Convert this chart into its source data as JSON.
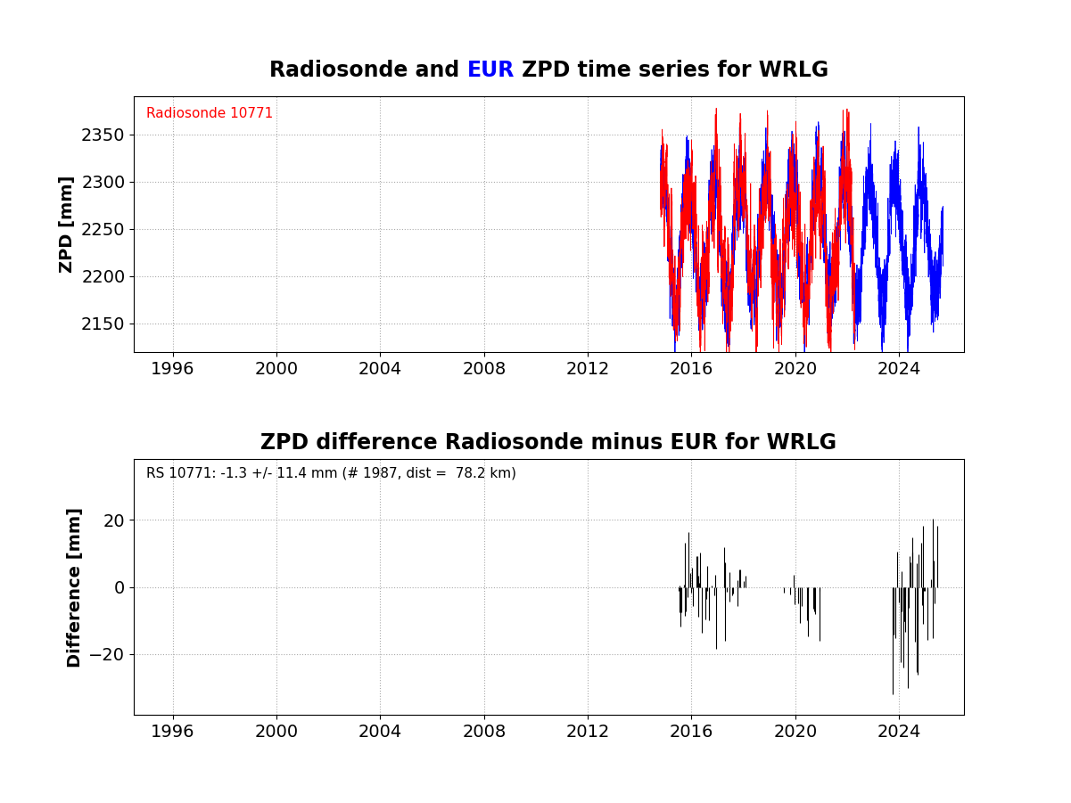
{
  "title1_parts": [
    {
      "text": "Radiosonde and ",
      "color": "black"
    },
    {
      "text": "EUR",
      "color": "blue"
    },
    {
      "text": " ZPD time series for WRLG",
      "color": "black"
    }
  ],
  "title2": "ZPD difference Radiosonde minus EUR for WRLG",
  "ylabel1": "ZPD [mm]",
  "ylabel2": "Difference [mm]",
  "xlim": [
    1994.5,
    2026.5
  ],
  "xticks": [
    1996,
    2000,
    2004,
    2008,
    2012,
    2016,
    2020,
    2024
  ],
  "ylim1": [
    2120,
    2390
  ],
  "yticks1": [
    2150,
    2200,
    2250,
    2300,
    2350
  ],
  "ylim2": [
    -38,
    38
  ],
  "yticks2": [
    -20,
    0,
    20
  ],
  "rs_label": "Radiosonde 10771",
  "diff_annotation": "RS 10771: -1.3 +/- 11.4 mm (# 1987, dist =  78.2 km)",
  "rs_color": "red",
  "eur_color": "blue",
  "diff_color": "black",
  "title_fontsize": 17,
  "axis_label_fontsize": 14,
  "tick_fontsize": 14,
  "annotation_fontsize": 11,
  "rs_legend_fontsize": 11,
  "background_color": "white",
  "grid_color": "#aaaaaa",
  "eur_start": 2014.8,
  "eur_end": 2025.7,
  "rs_start": 2014.8,
  "rs_end": 2022.3,
  "diff_c1_start": 2015.5,
  "diff_c1_end": 2018.1,
  "diff_c2_start": 2019.5,
  "diff_c2_end": 2021.8,
  "diff_c3_start": 2023.7,
  "diff_c3_end": 2025.5
}
